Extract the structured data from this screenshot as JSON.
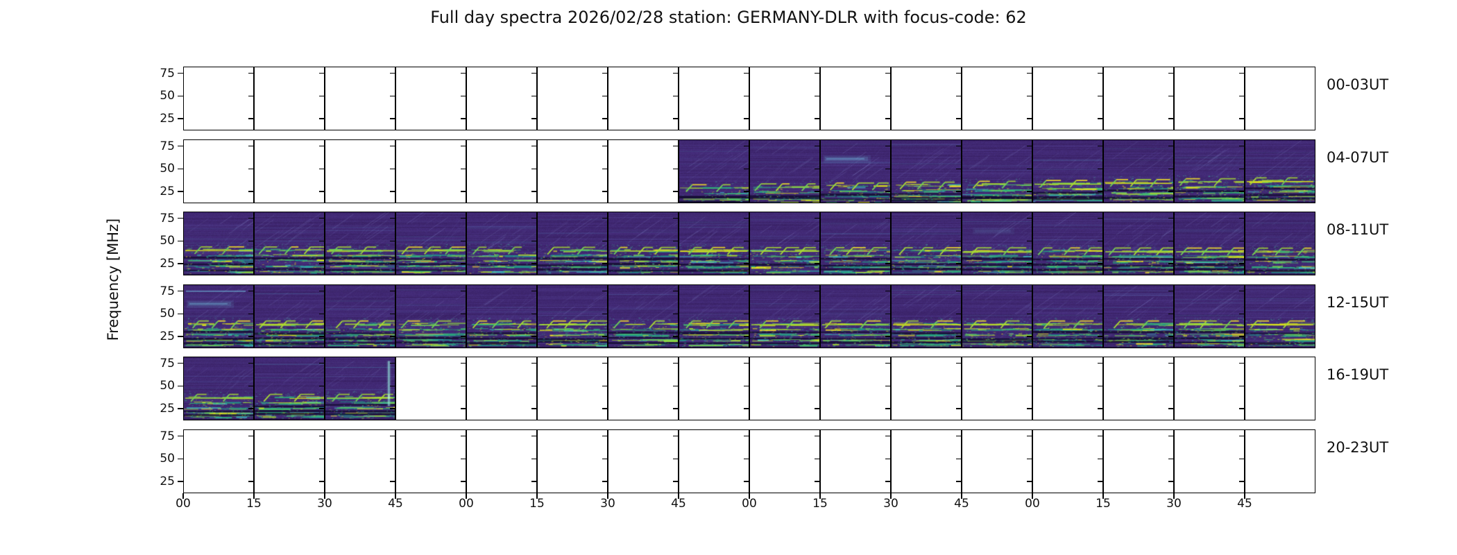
{
  "title": "Full day spectra 2026/02/28 station: GERMANY-DLR with focus-code: 62",
  "ylabel": "Frequency [MHz]",
  "y_tick_labels": [
    "75",
    "50",
    "25"
  ],
  "x_tick_labels": [
    "00",
    "15",
    "30",
    "45",
    "00",
    "15",
    "30",
    "45",
    "00",
    "15",
    "30",
    "45",
    "00",
    "15",
    "30",
    "45"
  ],
  "rows": [
    {
      "label": "00-03UT",
      "data_panels": [
        0,
        0,
        0,
        0,
        0,
        0,
        0,
        0,
        0,
        0,
        0,
        0,
        0,
        0,
        0,
        0
      ]
    },
    {
      "label": "04-07UT",
      "data_panels": [
        0,
        0,
        0,
        0,
        0,
        0,
        0,
        1,
        1,
        1,
        1,
        1,
        1,
        1,
        1,
        1
      ]
    },
    {
      "label": "08-11UT",
      "data_panels": [
        1,
        1,
        1,
        1,
        1,
        1,
        1,
        1,
        1,
        1,
        1,
        1,
        1,
        1,
        1,
        1
      ]
    },
    {
      "label": "12-15UT",
      "data_panels": [
        1,
        1,
        1,
        1,
        1,
        1,
        1,
        1,
        1,
        1,
        1,
        1,
        1,
        1,
        1,
        1
      ]
    },
    {
      "label": "16-19UT",
      "data_panels": [
        1,
        1,
        1,
        0,
        0,
        0,
        0,
        0,
        0,
        0,
        0,
        0,
        0,
        0,
        0,
        0
      ]
    },
    {
      "label": "20-23UT",
      "data_panels": [
        0,
        0,
        0,
        0,
        0,
        0,
        0,
        0,
        0,
        0,
        0,
        0,
        0,
        0,
        0,
        0
      ]
    }
  ],
  "features": [
    {
      "row": 1,
      "panel": 9,
      "type": "cyan-band"
    },
    {
      "row": 2,
      "panel": 11,
      "type": "soft-smear"
    },
    {
      "row": 3,
      "panel": 0,
      "type": "cyan-line-and-band"
    },
    {
      "row": 4,
      "panel": 2,
      "type": "vertical-streak"
    }
  ],
  "colors": {
    "figure_bg": "#ffffff",
    "axis": "#000000",
    "panel_bg_rgb": [
      64,
      40,
      114
    ],
    "dark_band_rgb": [
      17,
      11,
      46
    ],
    "diagonal_faint": "rgba(150,160,225,0.16)",
    "cyan_feature_rgb": [
      120,
      205,
      235
    ],
    "streak_palette": [
      "#20938c",
      "#2ab07f",
      "#46c06f",
      "#70cf57",
      "#a8db34",
      "#e2e41c",
      "#fde725",
      "#3fc0c9"
    ],
    "streak_weights": [
      3,
      3,
      2,
      2,
      1.6,
      1.2,
      0.9,
      1
    ]
  },
  "chart_data": {
    "type": "heatmap",
    "subtype": "radio-spectrogram-grid",
    "title": "Full day spectra 2026/02/28 station: GERMANY-DLR with focus-code: 62",
    "date": "2026/02/28",
    "station": "GERMANY-DLR",
    "focus_code": "62",
    "colormap": "viridis",
    "xlabel": "",
    "ylabel": "Frequency [MHz]",
    "x_ticks_minutes": [
      "00",
      "15",
      "30",
      "45"
    ],
    "y_ticks_mhz": [
      25,
      50,
      75
    ],
    "ylim_mhz": [
      12,
      82
    ],
    "grid": {
      "rows": 6,
      "panels_per_row": 16,
      "minutes_per_panel": 15,
      "hours_per_row": 4
    },
    "legend_position": "none",
    "row_time_ranges": [
      {
        "label": "00-03UT",
        "span": "00:00-04:00 UT",
        "coverage": "no data (all panels blank)"
      },
      {
        "label": "04-07UT",
        "span": "04:00-08:00 UT",
        "coverage": "data from 05:45 to 08:00 UT (panels 8-16)"
      },
      {
        "label": "08-11UT",
        "span": "08:00-12:00 UT",
        "coverage": "data in all 16 panels"
      },
      {
        "label": "12-15UT",
        "span": "12:00-16:00 UT",
        "coverage": "data in all 16 panels"
      },
      {
        "label": "16-19UT",
        "span": "16:00-20:00 UT",
        "coverage": "data from 16:00 to 16:45 UT (panels 1-3)"
      },
      {
        "label": "20-23UT",
        "span": "20:00-24:00 UT",
        "coverage": "no data (all panels blank)"
      }
    ],
    "notes": "Dark violet background with bright green/yellow emission streaks concentrated below ~30 MHz; faint diagonal sweep traces at higher frequencies; occasional pale cyan bands near 55-70 MHz; bright vertical streak at end of 16:30-16:45 panel."
  }
}
